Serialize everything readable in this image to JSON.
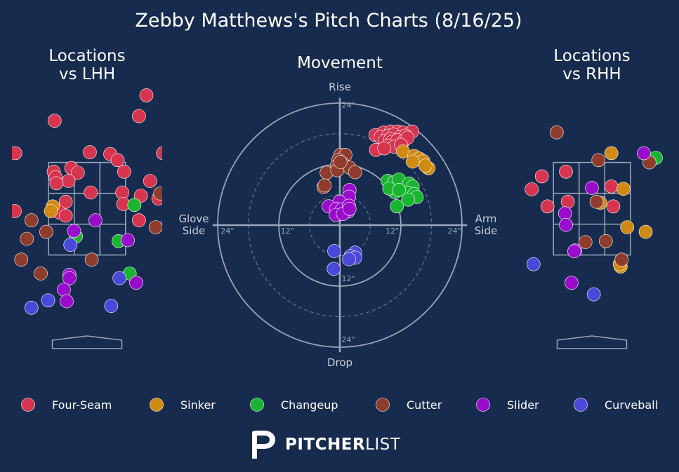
{
  "title": "Zebby Matthews's Pitch Charts (8/16/25)",
  "colors": {
    "background": "#162b4d",
    "zone": "#9aa7bb",
    "Four-Seam": "#d7344f",
    "Sinker": "#d08a12",
    "Changeup": "#1ab530",
    "Cutter": "#8f3c2c",
    "Slider": "#9a0ccc",
    "Curveball": "#4a48d8"
  },
  "legend": [
    "Four-Seam",
    "Sinker",
    "Changeup",
    "Cutter",
    "Slider",
    "Curveball"
  ],
  "brand": {
    "bold": "PITCHER",
    "light": "LIST",
    "icon": "pitcherlist-p-icon"
  },
  "chart_data": [
    {
      "type": "scatter",
      "title": "Locations\nvs LHH",
      "xlim": [
        -2.1,
        2.1
      ],
      "ylim": [
        -0.4,
        5.0
      ],
      "strike_zone": {
        "x": [
          -0.83,
          0.83
        ],
        "y": [
          1.5,
          3.5
        ]
      },
      "series": [
        {
          "name": "Four-Seam",
          "points": [
            [
              1.28,
              4.95
            ],
            [
              1.12,
              4.5
            ],
            [
              -0.7,
              4.4
            ],
            [
              -1.55,
              3.7
            ],
            [
              0.06,
              3.72
            ],
            [
              0.5,
              3.68
            ],
            [
              0.66,
              3.55
            ],
            [
              1.64,
              3.7
            ],
            [
              -0.72,
              3.3
            ],
            [
              -0.34,
              3.38
            ],
            [
              -0.2,
              3.28
            ],
            [
              -0.68,
              3.18
            ],
            [
              -0.4,
              3.1
            ],
            [
              -0.66,
              3.05
            ],
            [
              0.8,
              3.3
            ],
            [
              1.36,
              3.1
            ],
            [
              1.84,
              3.05
            ],
            [
              0.08,
              2.85
            ],
            [
              0.76,
              2.85
            ],
            [
              1.16,
              2.78
            ],
            [
              1.54,
              2.72
            ],
            [
              0.78,
              2.6
            ],
            [
              -0.46,
              2.65
            ],
            [
              -0.6,
              2.42
            ],
            [
              -0.46,
              2.35
            ],
            [
              -1.56,
              2.45
            ],
            [
              1.12,
              2.25
            ],
            [
              1.76,
              2.2
            ],
            [
              -1.78,
              2.1
            ]
          ]
        },
        {
          "name": "Sinker",
          "points": [
            [
              -0.74,
              2.55
            ],
            [
              -0.78,
              2.45
            ]
          ]
        },
        {
          "name": "Changeup",
          "points": [
            [
              1.02,
              2.58
            ],
            [
              2.08,
              1.95
            ],
            [
              -0.24,
              1.9
            ],
            [
              0.68,
              1.8
            ],
            [
              0.92,
              1.1
            ]
          ]
        },
        {
          "name": "Cutter",
          "points": [
            [
              1.58,
              2.83
            ],
            [
              -1.2,
              2.25
            ],
            [
              1.48,
              2.1
            ],
            [
              -0.88,
              2.0
            ],
            [
              -1.3,
              1.85
            ],
            [
              0.1,
              1.4
            ],
            [
              -1.42,
              1.4
            ],
            [
              -1.0,
              1.1
            ]
          ]
        },
        {
          "name": "Slider",
          "points": [
            [
              -0.28,
              2.02
            ],
            [
              0.18,
              2.25
            ],
            [
              0.88,
              1.82
            ],
            [
              -2.02,
              1.7
            ],
            [
              -0.38,
              1.07
            ],
            [
              -0.38,
              1.0
            ],
            [
              1.06,
              0.9
            ],
            [
              -0.5,
              0.75
            ],
            [
              -0.44,
              0.5
            ]
          ]
        },
        {
          "name": "Curveball",
          "points": [
            [
              -0.36,
              1.72
            ],
            [
              0.7,
              1.0
            ],
            [
              -0.84,
              0.52
            ],
            [
              -1.2,
              0.36
            ],
            [
              0.52,
              0.4
            ]
          ]
        }
      ]
    },
    {
      "type": "scatter",
      "title": "Movement",
      "axis_labels": {
        "top": "Rise",
        "bottom": "Drop",
        "left": "Glove\nSide",
        "right": "Arm\nSide"
      },
      "ring_labels": [
        "12\"",
        "24\""
      ],
      "xlim": [
        -24,
        24
      ],
      "ylim": [
        -24,
        24
      ],
      "series": [
        {
          "name": "Four-Seam",
          "points": [
            [
              7,
              17.7
            ],
            [
              8.6,
              18.2
            ],
            [
              10,
              18.4
            ],
            [
              11.4,
              18.4
            ],
            [
              12.4,
              18.2
            ],
            [
              14.2,
              18.4
            ],
            [
              8,
              17.3
            ],
            [
              9.5,
              17.6
            ],
            [
              10.6,
              17.8
            ],
            [
              11.8,
              17.3
            ],
            [
              12.9,
              17.6
            ],
            [
              8.8,
              16.6
            ],
            [
              9.9,
              16.9
            ],
            [
              10.3,
              16.4
            ],
            [
              11.3,
              16.7
            ],
            [
              12.5,
              16.5
            ],
            [
              13.3,
              17.2
            ],
            [
              9.4,
              15.6
            ],
            [
              10.7,
              15.4
            ],
            [
              12,
              15.8
            ],
            [
              7.1,
              14.8
            ],
            [
              8.7,
              15.1
            ]
          ]
        },
        {
          "name": "Sinker",
          "points": [
            [
              12.4,
              14.5
            ],
            [
              14.6,
              13.6
            ],
            [
              15.6,
              13.1
            ],
            [
              16.4,
              12.6
            ],
            [
              14.3,
              12.5
            ],
            [
              17.4,
              11.2
            ],
            [
              16.8,
              11.7
            ]
          ]
        },
        {
          "name": "Changeup",
          "points": [
            [
              9.4,
              8.7
            ],
            [
              10.6,
              8.4
            ],
            [
              11.6,
              9.0
            ],
            [
              13.6,
              8.2
            ],
            [
              14.3,
              7.6
            ],
            [
              10.8,
              6.5
            ],
            [
              13.3,
              6.4
            ],
            [
              14.6,
              6.1
            ],
            [
              9.7,
              7.2
            ],
            [
              11.6,
              6.9
            ],
            [
              15.1,
              5.5
            ],
            [
              13.4,
              5.0
            ],
            [
              11.2,
              3.7
            ]
          ]
        },
        {
          "name": "Cutter",
          "points": [
            [
              0.1,
              13.8
            ],
            [
              1.1,
              13.8
            ],
            [
              -0.3,
              12.8
            ],
            [
              0.6,
              12.1
            ],
            [
              -0.6,
              11.6
            ],
            [
              0.2,
              11.7
            ],
            [
              1.9,
              11.3
            ],
            [
              -2.6,
              10.3
            ],
            [
              -0.5,
              10.8
            ],
            [
              3.0,
              10.4
            ],
            [
              0.1,
              12.4
            ],
            [
              -3.2,
              7.5
            ],
            [
              -3.0,
              7.8
            ]
          ]
        },
        {
          "name": "Slider",
          "points": [
            [
              1.9,
              6.9
            ],
            [
              1.8,
              5.6
            ],
            [
              -0.1,
              4.6
            ],
            [
              -2.2,
              3.7
            ],
            [
              -0.7,
              3.2
            ],
            [
              0.4,
              3.1
            ],
            [
              1.6,
              2.7
            ],
            [
              1.8,
              3.8
            ],
            [
              -0.8,
              2.0
            ],
            [
              0.6,
              2.2
            ],
            [
              1.9,
              3.2
            ]
          ]
        },
        {
          "name": "Curveball",
          "points": [
            [
              -1.1,
              -5.1
            ],
            [
              3.0,
              -5.4
            ],
            [
              2.1,
              -6.1
            ],
            [
              3.0,
              -6.4
            ],
            [
              1.8,
              -6.7
            ],
            [
              -1.2,
              -8.6
            ]
          ]
        }
      ]
    },
    {
      "type": "scatter",
      "title": "Locations\nvs RHH",
      "xlim": [
        -2.1,
        2.1
      ],
      "ylim": [
        -0.4,
        5.0
      ],
      "strike_zone": {
        "x": [
          -0.83,
          0.83
        ],
        "y": [
          1.5,
          3.5
        ]
      },
      "series": [
        {
          "name": "Four-Seam",
          "points": [
            [
              -0.56,
              3.3
            ],
            [
              -1.08,
              3.2
            ],
            [
              -1.3,
              2.92
            ],
            [
              0.42,
              2.98
            ],
            [
              -0.52,
              2.65
            ],
            [
              -0.96,
              2.55
            ],
            [
              0.46,
              2.55
            ]
          ]
        },
        {
          "name": "Sinker",
          "points": [
            [
              0.42,
              3.7
            ],
            [
              0.68,
              2.93
            ],
            [
              0.18,
              2.63
            ],
            [
              0.76,
              2.1
            ],
            [
              1.16,
              2.0
            ],
            [
              0.62,
              1.25
            ],
            [
              0.6,
              1.3
            ]
          ]
        },
        {
          "name": "Changeup",
          "points": [
            [
              1.38,
              3.6
            ]
          ]
        },
        {
          "name": "Cutter",
          "points": [
            [
              -0.76,
              4.15
            ],
            [
              0.14,
              3.55
            ],
            [
              1.24,
              3.5
            ],
            [
              0.1,
              2.65
            ],
            [
              0.3,
              1.8
            ],
            [
              0.64,
              1.4
            ],
            [
              -0.14,
              1.78
            ]
          ]
        },
        {
          "name": "Slider",
          "points": [
            [
              1.12,
              3.7
            ],
            [
              0.0,
              2.95
            ],
            [
              -0.58,
              2.4
            ],
            [
              -0.56,
              2.15
            ],
            [
              -0.36,
              1.6
            ],
            [
              -0.38,
              1.58
            ],
            [
              -0.44,
              0.9
            ]
          ]
        },
        {
          "name": "Curveball",
          "points": [
            [
              -1.26,
              1.3
            ],
            [
              0.04,
              0.65
            ]
          ]
        }
      ]
    }
  ]
}
